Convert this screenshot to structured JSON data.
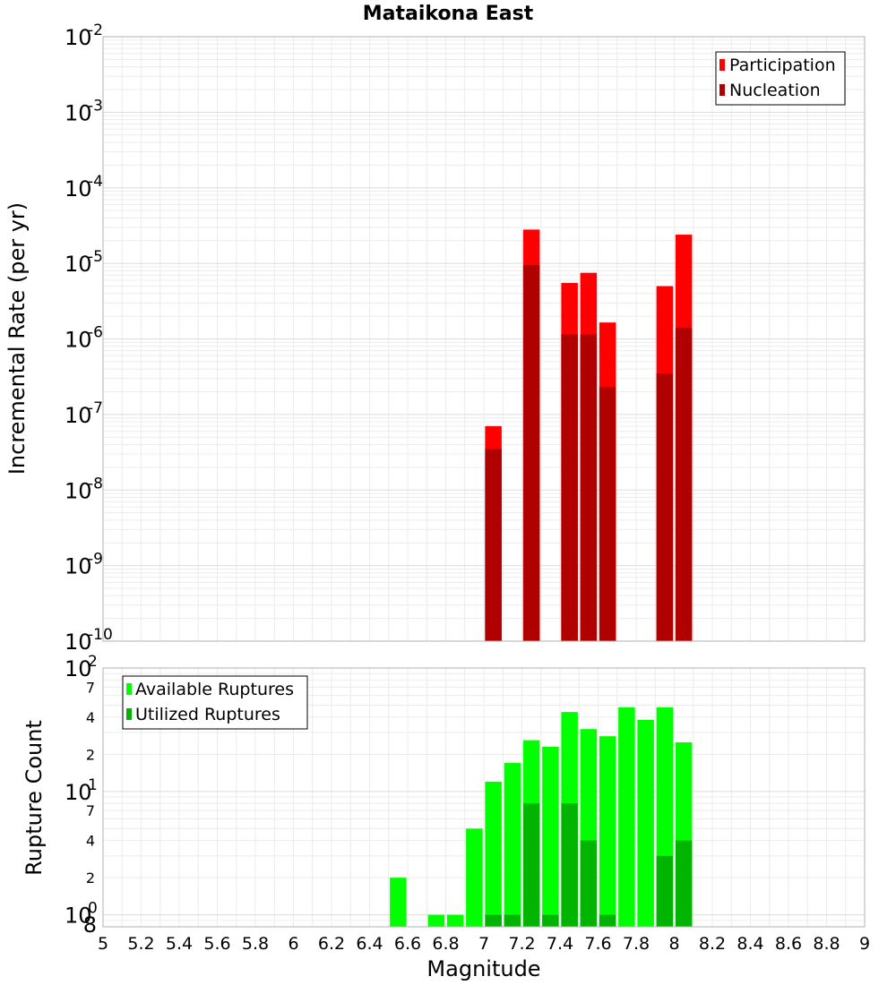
{
  "chart_data": [
    {
      "type": "bar",
      "title": "Mataikona East",
      "xlabel": "Magnitude",
      "ylabel": "Incremental Rate (per yr)",
      "yscale": "log",
      "xlim": [
        5,
        9
      ],
      "ylim": [
        1e-10,
        0.01
      ],
      "x_ticks": [
        "5",
        "5.2",
        "5.4",
        "5.6",
        "5.8",
        "6",
        "6.2",
        "6.4",
        "6.6",
        "6.8",
        "7",
        "7.2",
        "7.4",
        "7.6",
        "7.8",
        "8",
        "8.2",
        "8.4",
        "8.6",
        "8.8",
        "9"
      ],
      "y_ticks": [
        {
          "base": "10",
          "exp": "-2"
        },
        {
          "base": "10",
          "exp": "-3"
        },
        {
          "base": "10",
          "exp": "-4"
        },
        {
          "base": "10",
          "exp": "-5"
        },
        {
          "base": "10",
          "exp": "-6"
        },
        {
          "base": "10",
          "exp": "-7"
        },
        {
          "base": "10",
          "exp": "-8"
        },
        {
          "base": "10",
          "exp": "-9"
        },
        {
          "base": "10",
          "exp": "-10"
        }
      ],
      "legend_position": "top-right",
      "series": [
        {
          "name": "Participation",
          "color": "#ff0000",
          "x": [
            7.05,
            7.25,
            7.45,
            7.55,
            7.65,
            7.95,
            8.05
          ],
          "values": [
            7e-08,
            2.8e-05,
            5.5e-06,
            7.5e-06,
            1.65e-06,
            5e-06,
            2.4e-05
          ]
        },
        {
          "name": "Nucleation",
          "color": "#b00000",
          "x": [
            7.05,
            7.25,
            7.45,
            7.55,
            7.65,
            7.95,
            8.05
          ],
          "values": [
            3.5e-08,
            9.5e-06,
            1.15e-06,
            1.15e-06,
            2.3e-07,
            3.5e-07,
            1.4e-06
          ]
        }
      ]
    },
    {
      "type": "bar",
      "xlabel": "Magnitude",
      "ylabel": "Rupture Count",
      "yscale": "log",
      "xlim": [
        5,
        9
      ],
      "ylim": [
        0.8,
        100
      ],
      "y_ticks": [
        {
          "base": "10",
          "exp": "2"
        },
        {
          "base": "10",
          "exp": "1"
        },
        {
          "base": "10",
          "exp": "0"
        }
      ],
      "y_minor_ticks": [
        "7",
        "4",
        "2",
        "7",
        "4",
        "2",
        "8"
      ],
      "legend_position": "top-left",
      "series": [
        {
          "name": "Available Ruptures",
          "color": "#00ff00",
          "x": [
            6.55,
            6.75,
            6.85,
            6.95,
            7.05,
            7.15,
            7.25,
            7.35,
            7.45,
            7.55,
            7.65,
            7.75,
            7.85,
            7.95,
            8.05
          ],
          "values": [
            2,
            1,
            1,
            5,
            12,
            17,
            26,
            23,
            44,
            32,
            28,
            48,
            38,
            48,
            25
          ]
        },
        {
          "name": "Utilized Ruptures",
          "color": "#00b400",
          "x": [
            7.05,
            7.15,
            7.25,
            7.35,
            7.45,
            7.55,
            7.65,
            7.95,
            8.05
          ],
          "values": [
            1,
            1,
            8,
            1,
            8,
            4,
            1,
            3,
            4
          ]
        }
      ]
    }
  ]
}
